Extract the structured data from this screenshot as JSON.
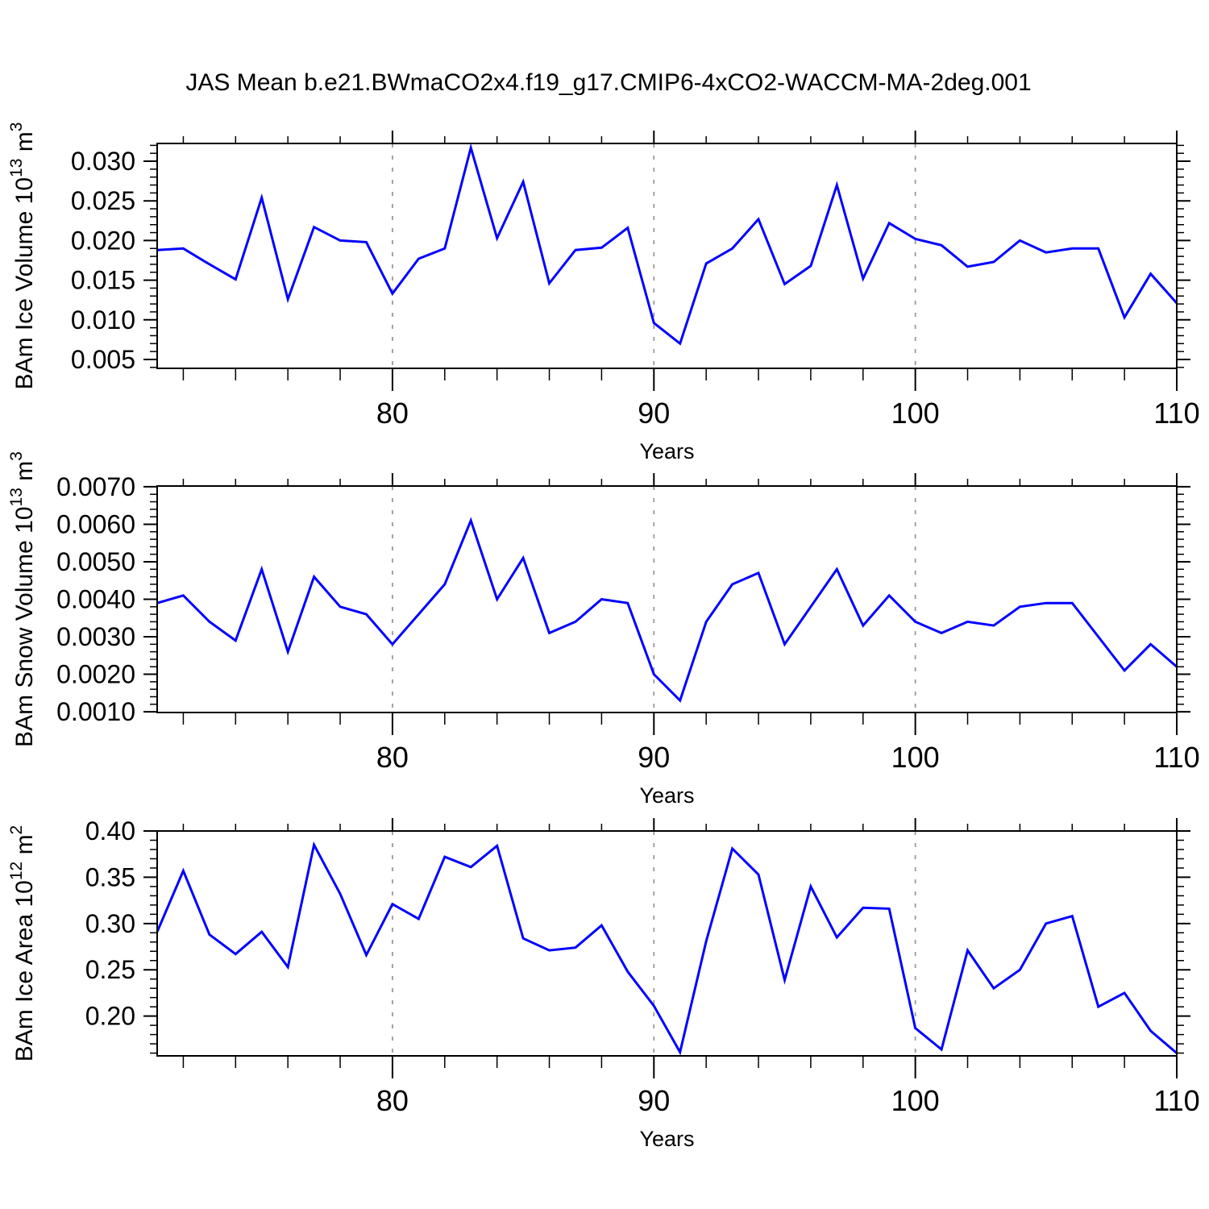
{
  "title": "JAS Mean b.e21.BWmaCO2x4.f19_g17.CMIP6-4xCO2-WACCM-MA-2deg.001",
  "colors": {
    "line": "#0000ff",
    "axis": "#000000",
    "grid": "#9a9a9a",
    "text": "#000000",
    "background": "#ffffff"
  },
  "chart_data": [
    {
      "type": "line",
      "ylabel": "BAm Ice Volume 10^13 m^3",
      "ylabel_parts": [
        {
          "text": "BAm Ice Volume 10",
          "sup": false
        },
        {
          "text": "13",
          "sup": true
        },
        {
          "text": " m",
          "sup": false
        },
        {
          "text": "3",
          "sup": true
        }
      ],
      "xlabel": "Years",
      "xlim": [
        71,
        110
      ],
      "xticks": [
        80,
        90,
        100,
        110
      ],
      "xtick_labels": [
        "80",
        "90",
        "100",
        "110"
      ],
      "x_minor_step": 2,
      "gridlines_at": [
        80,
        90,
        100
      ],
      "ylim": [
        0.00388,
        0.03224
      ],
      "yticks": [
        0.005,
        0.01,
        0.015,
        0.02,
        0.025,
        0.03
      ],
      "ytick_labels": [
        "0.005",
        "0.010",
        "0.015",
        "0.020",
        "0.025",
        "0.030"
      ],
      "y_minor_step": 0.001,
      "x": [
        71,
        72,
        73,
        74,
        75,
        76,
        77,
        78,
        79,
        80,
        81,
        82,
        83,
        84,
        85,
        86,
        87,
        88,
        89,
        90,
        91,
        92,
        93,
        94,
        95,
        96,
        97,
        98,
        99,
        100,
        101,
        102,
        103,
        104,
        105,
        106,
        107,
        108,
        109,
        110
      ],
      "values": [
        0.0188,
        0.019,
        0.017,
        0.0151,
        0.0254,
        0.0126,
        0.0217,
        0.02,
        0.0198,
        0.0133,
        0.0177,
        0.019,
        0.0317,
        0.0203,
        0.0274,
        0.0146,
        0.0188,
        0.0191,
        0.0216,
        0.0096,
        0.007,
        0.0171,
        0.019,
        0.0227,
        0.0145,
        0.0168,
        0.027,
        0.0152,
        0.0222,
        0.0202,
        0.0194,
        0.0167,
        0.0173,
        0.02,
        0.0185,
        0.019,
        0.019,
        0.0103,
        0.0158,
        0.0121
      ]
    },
    {
      "type": "line",
      "ylabel": "BAm Snow Volume 10^13 m^3",
      "ylabel_parts": [
        {
          "text": "BAm Snow Volume 10",
          "sup": false
        },
        {
          "text": "13",
          "sup": true
        },
        {
          "text": " m",
          "sup": false
        },
        {
          "text": "3",
          "sup": true
        }
      ],
      "xlabel": "Years",
      "xlim": [
        71,
        110
      ],
      "xticks": [
        80,
        90,
        100,
        110
      ],
      "xtick_labels": [
        "80",
        "90",
        "100",
        "110"
      ],
      "x_minor_step": 2,
      "gridlines_at": [
        80,
        90,
        100
      ],
      "ylim": [
        0.00098,
        0.00702
      ],
      "yticks": [
        0.001,
        0.002,
        0.003,
        0.004,
        0.005,
        0.006,
        0.007
      ],
      "ytick_labels": [
        "0.0010",
        "0.0020",
        "0.0030",
        "0.0040",
        "0.0050",
        "0.0060",
        "0.0070"
      ],
      "y_minor_step": 0.0002,
      "x": [
        71,
        72,
        73,
        74,
        75,
        76,
        77,
        78,
        79,
        80,
        81,
        82,
        83,
        84,
        85,
        86,
        87,
        88,
        89,
        90,
        91,
        92,
        93,
        94,
        95,
        96,
        97,
        98,
        99,
        100,
        101,
        102,
        103,
        104,
        105,
        106,
        107,
        108,
        109,
        110
      ],
      "values": [
        0.0039,
        0.0041,
        0.0034,
        0.0029,
        0.0048,
        0.0026,
        0.0046,
        0.0038,
        0.0036,
        0.0028,
        0.0036,
        0.0044,
        0.0061,
        0.004,
        0.0051,
        0.0031,
        0.0034,
        0.004,
        0.0039,
        0.002,
        0.0013,
        0.0034,
        0.0044,
        0.0047,
        0.0028,
        0.0038,
        0.0048,
        0.0033,
        0.0041,
        0.0034,
        0.0031,
        0.0034,
        0.0033,
        0.0038,
        0.0039,
        0.0039,
        0.003,
        0.0021,
        0.0028,
        0.0022
      ]
    },
    {
      "type": "line",
      "ylabel": "BAm Ice Area 10^12 m^2",
      "ylabel_parts": [
        {
          "text": "BAm Ice Area 10",
          "sup": false
        },
        {
          "text": "12",
          "sup": true
        },
        {
          "text": " m",
          "sup": false
        },
        {
          "text": "2",
          "sup": true
        }
      ],
      "xlabel": "Years",
      "xlim": [
        71,
        110
      ],
      "xticks": [
        80,
        90,
        100,
        110
      ],
      "xtick_labels": [
        "80",
        "90",
        "100",
        "110"
      ],
      "x_minor_step": 2,
      "gridlines_at": [
        80,
        90,
        100
      ],
      "ylim": [
        0.157,
        0.4
      ],
      "yticks": [
        0.2,
        0.25,
        0.3,
        0.35,
        0.4
      ],
      "ytick_labels": [
        "0.20",
        "0.25",
        "0.30",
        "0.35",
        "0.40"
      ],
      "y_minor_step": 0.01,
      "x": [
        71,
        72,
        73,
        74,
        75,
        76,
        77,
        78,
        79,
        80,
        81,
        82,
        83,
        84,
        85,
        86,
        87,
        88,
        89,
        90,
        91,
        92,
        93,
        94,
        95,
        96,
        97,
        98,
        99,
        100,
        101,
        102,
        103,
        104,
        105,
        106,
        107,
        108,
        109,
        110
      ],
      "values": [
        0.291,
        0.357,
        0.288,
        0.267,
        0.291,
        0.253,
        0.385,
        0.332,
        0.266,
        0.321,
        0.305,
        0.372,
        0.361,
        0.384,
        0.284,
        0.271,
        0.274,
        0.298,
        0.248,
        0.211,
        0.161,
        0.281,
        0.381,
        0.353,
        0.239,
        0.34,
        0.285,
        0.317,
        0.316,
        0.187,
        0.164,
        0.271,
        0.23,
        0.25,
        0.3,
        0.308,
        0.21,
        0.225,
        0.184,
        0.16
      ]
    }
  ]
}
